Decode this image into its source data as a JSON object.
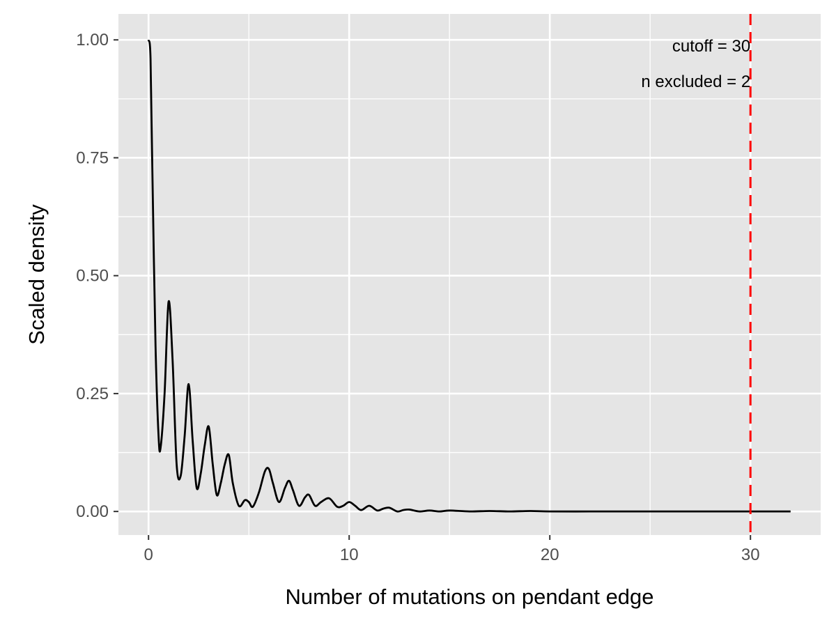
{
  "chart_data": {
    "type": "line",
    "xlabel": "Number of mutations on pendant edge",
    "ylabel": "Scaled density",
    "xlim": [
      -1.5,
      33.5
    ],
    "ylim": [
      -0.05,
      1.055
    ],
    "x_ticks": [
      0,
      10,
      20,
      30
    ],
    "x_tick_labels": [
      "0",
      "10",
      "20",
      "30"
    ],
    "y_ticks": [
      0,
      0.25,
      0.5,
      0.75,
      1.0
    ],
    "y_tick_labels": [
      "0.00",
      "0.25",
      "0.50",
      "0.75",
      "1.00"
    ],
    "grid": true,
    "series": [
      {
        "x": [
          0,
          0.1,
          0.2,
          0.35,
          0.5,
          0.6,
          0.8,
          1.0,
          1.2,
          1.4,
          1.6,
          1.8,
          2.0,
          2.2,
          2.4,
          2.6,
          2.8,
          3.0,
          3.2,
          3.4,
          3.6,
          3.8,
          4.0,
          4.2,
          4.5,
          4.8,
          5.0,
          5.2,
          5.5,
          5.8,
          6.0,
          6.2,
          6.5,
          6.8,
          7.0,
          7.2,
          7.5,
          7.8,
          8.0,
          8.3,
          8.6,
          9.0,
          9.4,
          9.7,
          10.0,
          10.3,
          10.6,
          11.0,
          11.4,
          11.7,
          12.0,
          12.4,
          12.7,
          13.0,
          13.5,
          14.0,
          14.5,
          15.0,
          16.0,
          17.0,
          18.0,
          19.0,
          20.0,
          22.0,
          24.0,
          26.0,
          28.0,
          30.0,
          32.0
        ],
        "y": [
          1.0,
          0.96,
          0.7,
          0.35,
          0.16,
          0.135,
          0.25,
          0.445,
          0.32,
          0.1,
          0.075,
          0.16,
          0.27,
          0.15,
          0.05,
          0.08,
          0.14,
          0.18,
          0.1,
          0.035,
          0.06,
          0.1,
          0.12,
          0.06,
          0.012,
          0.024,
          0.02,
          0.01,
          0.04,
          0.085,
          0.09,
          0.06,
          0.02,
          0.05,
          0.065,
          0.045,
          0.012,
          0.03,
          0.035,
          0.012,
          0.02,
          0.028,
          0.01,
          0.012,
          0.02,
          0.012,
          0.003,
          0.012,
          0.002,
          0.006,
          0.008,
          0.0,
          0.003,
          0.004,
          0.0,
          0.002,
          0.0,
          0.002,
          0.0,
          0.001,
          0.0,
          0.001,
          0.0,
          0.0,
          0.0,
          0.0,
          0.0,
          0.0,
          0.0
        ]
      }
    ],
    "vline": {
      "x": 30,
      "color": "#ff0000",
      "style": "dashed"
    },
    "annotations": [
      "cutoff = 30",
      "n excluded = 2"
    ],
    "colors": {
      "panel": "#e5e5e5",
      "grid": "#ffffff",
      "line": "#000000"
    }
  }
}
